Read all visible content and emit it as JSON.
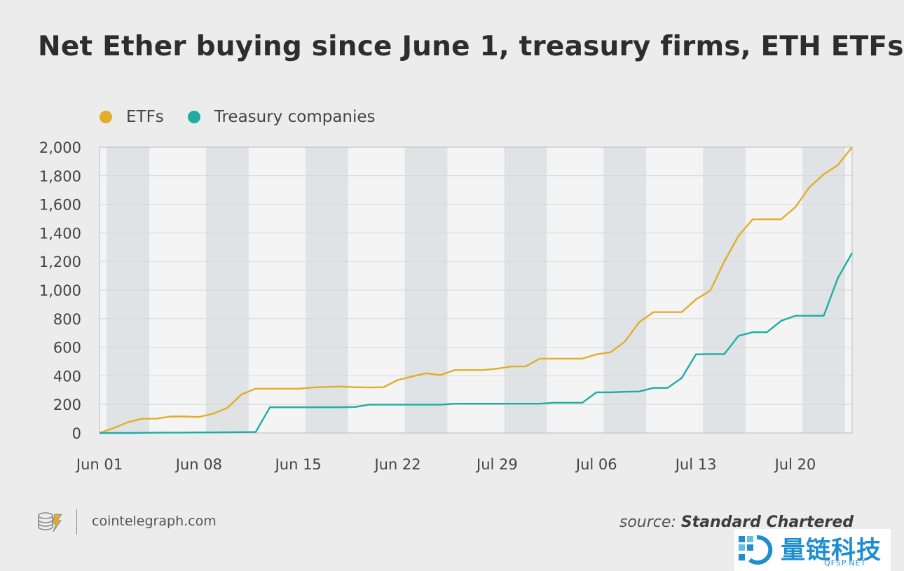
{
  "title": "Net Ether buying since June 1, treasury firms, ETH ETFs",
  "footer": {
    "site": "cointelegraph.com",
    "source_prefix": "source:",
    "source_name": "Standard Chartered"
  },
  "watermark": {
    "text": "量链科技",
    "sub": "QFSP.NET"
  },
  "colors": {
    "etfs": "#e2ad2a",
    "treasury": "#1fada3",
    "band": "#dfe3e5",
    "grid": "#d6d6d6"
  },
  "chart_data": {
    "type": "line",
    "title": "Net Ether buying since June 1, treasury firms, ETH ETFs",
    "xlabel": "",
    "ylabel": "",
    "ylim": [
      0,
      2000
    ],
    "yticks": [
      0,
      200,
      400,
      600,
      800,
      1000,
      1200,
      1400,
      1600,
      1800,
      2000
    ],
    "ytick_labels": [
      "0",
      "200",
      "400",
      "600",
      "800",
      "1,000",
      "1,200",
      "1,400",
      "1,600",
      "1,800",
      "2,000"
    ],
    "xtick_labels": [
      "Jun 01",
      "Jun 08",
      "Jun 15",
      "Jun 22",
      "Jul 29",
      "Jul 06",
      "Jul 13",
      "Jul 20"
    ],
    "grid": true,
    "legend": "top-left",
    "series": [
      {
        "name": "ETFs",
        "color": "#e2ad2a",
        "values": [
          0,
          35,
          75,
          100,
          100,
          115,
          115,
          112,
          135,
          175,
          270,
          310,
          310,
          310,
          310,
          318,
          322,
          325,
          320,
          318,
          320,
          370,
          395,
          418,
          405,
          440,
          440,
          440,
          450,
          465,
          465,
          520,
          520,
          520,
          520,
          550,
          565,
          640,
          775,
          845,
          845,
          845,
          935,
          995,
          1200,
          1380,
          1495,
          1495,
          1495,
          1580,
          1720,
          1810,
          1875,
          2000
        ]
      },
      {
        "name": "Treasury companies",
        "color": "#1fada3",
        "values": [
          0,
          0,
          0,
          1,
          2,
          3,
          3,
          4,
          4,
          5,
          6,
          7,
          180,
          180,
          180,
          180,
          180,
          180,
          182,
          198,
          198,
          198,
          198,
          198,
          198,
          205,
          205,
          205,
          205,
          205,
          205,
          205,
          212,
          212,
          212,
          285,
          285,
          288,
          290,
          315,
          315,
          385,
          550,
          552,
          552,
          680,
          705,
          705,
          785,
          820,
          820,
          820,
          1085,
          1260
        ]
      }
    ]
  }
}
